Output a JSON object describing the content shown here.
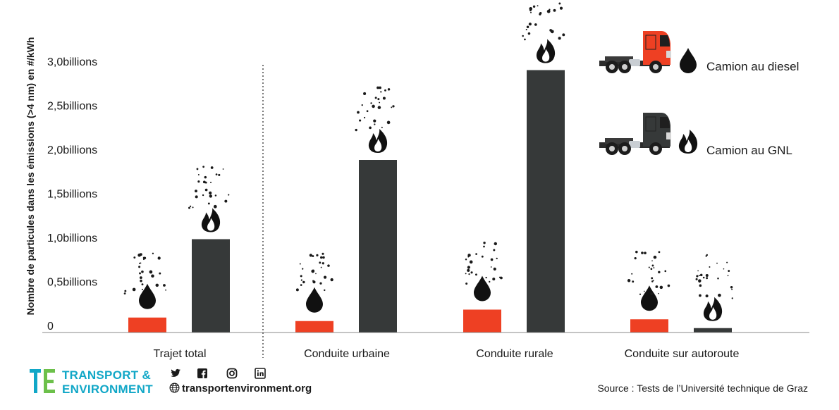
{
  "chart_data": {
    "type": "bar",
    "ylabel": "Nombre de particules dans les émissions (>4 nm) en #/kWh",
    "ylim": [
      0,
      3.0
    ],
    "yticks": [
      {
        "value": 0,
        "label": "0"
      },
      {
        "value": 0.5,
        "label": "0,5billions"
      },
      {
        "value": 1.0,
        "label": "1,0billions"
      },
      {
        "value": 1.5,
        "label": "1,5billions"
      },
      {
        "value": 2.0,
        "label": "2,0billions"
      },
      {
        "value": 2.5,
        "label": "2,5billions"
      },
      {
        "value": 3.0,
        "label": "3,0billions"
      }
    ],
    "categories": [
      "Trajet total",
      "Conduite urbaine",
      "Conduite rurale",
      "Conduite sur autoroute"
    ],
    "series": [
      {
        "name": "Camion au diesel",
        "color": "#ee4023",
        "icon": "oil-drop-icon",
        "values": [
          0.17,
          0.13,
          0.26,
          0.15
        ]
      },
      {
        "name": "Camion au GNL",
        "color": "#363939",
        "icon": "flame-icon",
        "values": [
          1.06,
          1.96,
          2.98,
          0.05
        ]
      }
    ],
    "grid": false,
    "legend": "top-right"
  },
  "footer": {
    "logo_line1": "TRANSPORT &",
    "logo_line2": "ENVIRONMENT",
    "socials": [
      "twitter-icon",
      "facebook-icon",
      "instagram-icon",
      "linkedin-icon"
    ],
    "website": "transportenvironment.org",
    "source": "Source : Tests de l’Université technique de Graz"
  }
}
